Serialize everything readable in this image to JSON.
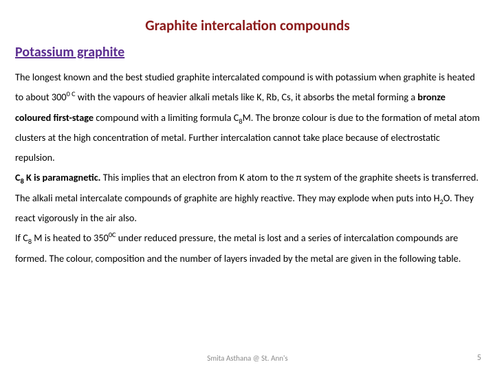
{
  "colors": {
    "title": "#8b1a1a",
    "subtitle": "#5b2d90",
    "body": "#000000",
    "footer": "#8a8a8a",
    "background": "#ffffff"
  },
  "text": {
    "title": "Graphite intercalation compounds",
    "subtitle": "Potassium graphite",
    "p1a": "The longest known and the best studied graphite intercalated compound is with potassium when graphite is heated to about 300",
    "p1b": "0 C",
    "p1c": " with the vapours of heavier alkali metals like K, Rb, Cs, it absorbs the metal forming a ",
    "p1d": "bronze coloured  first-stage",
    "p1e": " compound with a limiting formula C",
    "p1sub1": "8",
    "p1f": "M.  The bronze colour is due to the formation of metal atom clusters at the high concentration of metal.  Further intercalation cannot take place because of electrostatic repulsion.",
    "p2a": "C",
    "p2sub1": "8",
    "p2b": " K is paramagnetic.",
    "p2c": "  This implies that an electron from K atom to the π system of the graphite sheets is transferred.   The alkali metal intercalate compounds of graphite are highly reactive.  They  may explode when puts into H",
    "p2sub2": "2",
    "p2d": "O.  They react vigorously in the air also.",
    "p3a": "If C",
    "p3sub1": "8",
    "p3b": " M is heated to 350",
    "p3sup1": "0C",
    "p3c": " under reduced pressure, the metal is lost and a series of intercalation compounds are formed.  The colour, composition and the number of layers invaded by the metal are given in the following table.",
    "footer": "Smita Asthana @ St. Ann's",
    "page": "5"
  }
}
